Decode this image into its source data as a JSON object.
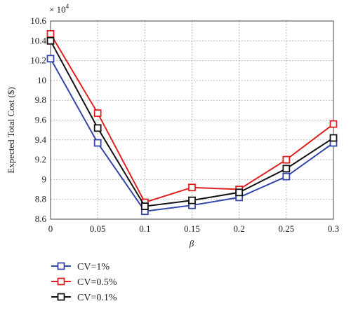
{
  "chart_data": {
    "type": "line",
    "x": [
      0,
      0.05,
      0.1,
      0.15,
      0.2,
      0.25,
      0.3
    ],
    "x_tick_labels": [
      "0",
      "0.05",
      "0.1",
      "0.15",
      "0.2",
      "0.25",
      "0.3"
    ],
    "y_tick_labels": [
      "8.6",
      "8.8",
      "9",
      "9.2",
      "9.4",
      "9.6",
      "9.8",
      "10",
      "10.2",
      "10.4",
      "10.6"
    ],
    "y_tick_values": [
      8.6,
      8.8,
      9.0,
      9.2,
      9.4,
      9.6,
      9.8,
      10.0,
      10.2,
      10.4,
      10.6
    ],
    "xlim": [
      0,
      0.3
    ],
    "ylim": [
      8.6,
      10.6
    ],
    "y_multiplier": "× 10",
    "y_multiplier_exponent": "4",
    "xlabel": "β",
    "ylabel": "Expected Total Cost ($)",
    "grid": true,
    "legend_position": "bottom-left, below plot",
    "series": [
      {
        "name": "CV=1%",
        "color": "#3344aa",
        "values": [
          10.22,
          9.37,
          8.68,
          8.74,
          8.82,
          9.03,
          9.37
        ]
      },
      {
        "name": "CV=0.5%",
        "color": "#e02020",
        "values": [
          10.47,
          9.67,
          8.77,
          8.92,
          8.9,
          9.2,
          9.56
        ]
      },
      {
        "name": "CV=0.1%",
        "color": "#111111",
        "values": [
          10.4,
          9.52,
          8.73,
          8.79,
          8.87,
          9.11,
          9.42
        ]
      }
    ]
  }
}
